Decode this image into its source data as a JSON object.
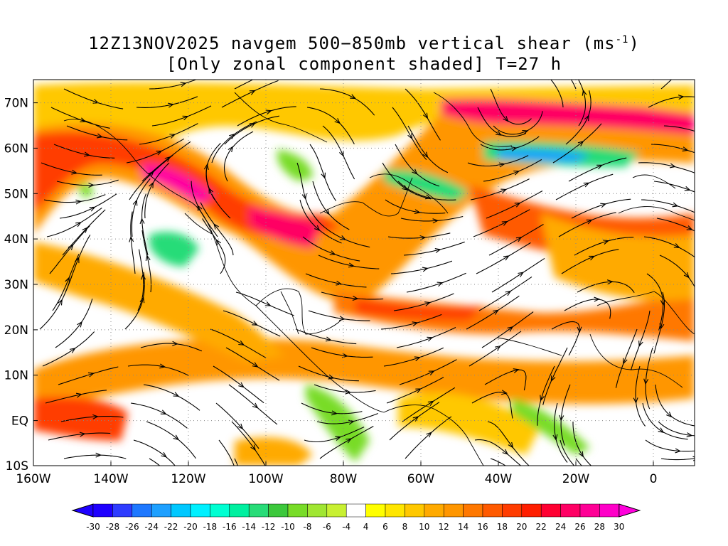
{
  "title": {
    "line1_prefix": "12Z13NOV2025 navgem 500−850mb vertical shear (ms",
    "line1_sup": "-1",
    "line1_suffix": ")",
    "line2": "[Only zonal component shaded] T=27 h"
  },
  "axes": {
    "y_labels": [
      "70N",
      "60N",
      "50N",
      "40N",
      "30N",
      "20N",
      "10N",
      "EQ",
      "10S"
    ],
    "x_labels": [
      "160W",
      "140W",
      "120W",
      "100W",
      "80W",
      "60W",
      "40W",
      "20W",
      "0"
    ]
  },
  "colorbar": {
    "labels": [
      "-30",
      "-28",
      "-26",
      "-24",
      "-22",
      "-20",
      "-18",
      "-16",
      "-14",
      "-12",
      "-10",
      "-8",
      "-6",
      "-4",
      "4",
      "6",
      "8",
      "10",
      "12",
      "14",
      "16",
      "18",
      "20",
      "22",
      "24",
      "26",
      "28",
      "30"
    ],
    "colors": [
      "#1e00ff",
      "#2e3cff",
      "#1e78ff",
      "#1ea0ff",
      "#00c8ff",
      "#00f0ff",
      "#00ffd2",
      "#00f0a0",
      "#28dc78",
      "#3cc83c",
      "#78dc28",
      "#a0e632",
      "#c8f032",
      "#ffffff",
      "#ffff00",
      "#ffe600",
      "#ffc800",
      "#ffaa00",
      "#ff9600",
      "#ff7800",
      "#ff5a00",
      "#ff3c00",
      "#ff1e00",
      "#ff0032",
      "#ff0064",
      "#ff0096",
      "#ff00c8"
    ],
    "under_color": "#1e00ff",
    "over_color": "#ff00dc"
  }
}
